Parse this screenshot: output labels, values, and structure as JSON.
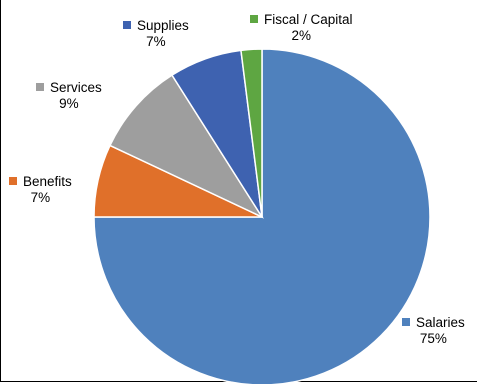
{
  "chart_data": {
    "type": "pie",
    "slices": [
      {
        "name": "Salaries",
        "percent_label": "75%",
        "value": 75,
        "color": "#4F81BD"
      },
      {
        "name": "Benefits",
        "percent_label": "7%",
        "value": 7,
        "color": "#E0702A"
      },
      {
        "name": "Services",
        "percent_label": "9%",
        "value": 9,
        "color": "#9E9E9E"
      },
      {
        "name": "Supplies",
        "percent_label": "7%",
        "value": 7,
        "color": "#3E62B0"
      },
      {
        "name": "Fiscal / Capital",
        "percent_label": "2%",
        "value": 2,
        "color": "#5EA642"
      }
    ]
  }
}
